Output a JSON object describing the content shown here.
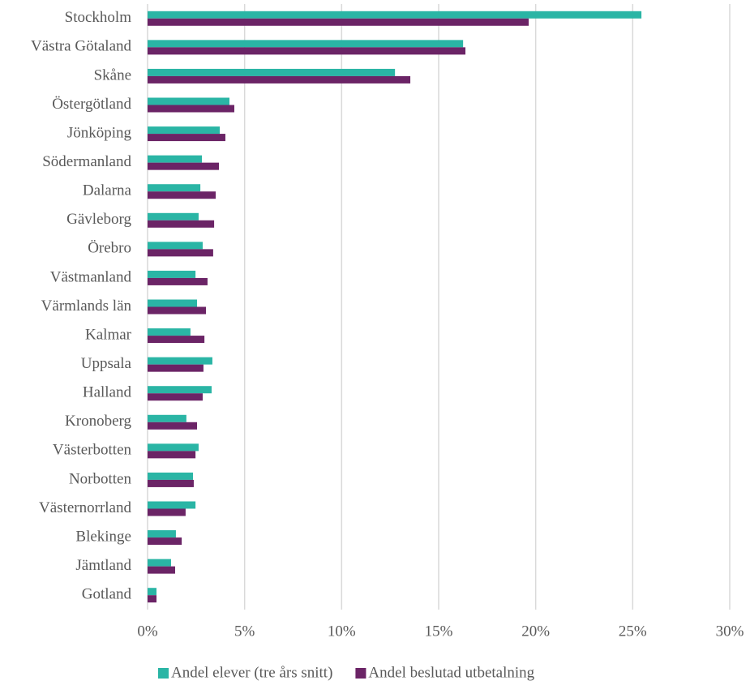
{
  "chart_data": {
    "type": "barh",
    "categories": [
      "Stockholm",
      "Västra Götaland",
      "Skåne",
      "Östergötland",
      "Jönköping",
      "Södermanland",
      "Dalarna",
      "Gävleborg",
      "Örebro",
      "Västmanland",
      "Värmlands län",
      "Kalmar",
      "Uppsala",
      "Halland",
      "Kronoberg",
      "Västerbotten",
      "Norbotten",
      "Västernorrland",
      "Blekinge",
      "Jämtland",
      "Gotland"
    ],
    "series": [
      {
        "name": "Andel elever (tre års snitt)",
        "color": "#2ab5a5",
        "values": [
          25.45,
          16.26,
          12.75,
          4.22,
          3.72,
          2.8,
          2.72,
          2.63,
          2.84,
          2.47,
          2.55,
          2.21,
          3.34,
          3.3,
          2.0,
          2.63,
          2.34,
          2.47,
          1.46,
          1.21,
          0.46
        ]
      },
      {
        "name": "Andel beslutad utbetalning",
        "color": "#6b2466",
        "values": [
          19.64,
          16.38,
          13.54,
          4.47,
          4.01,
          3.68,
          3.51,
          3.43,
          3.38,
          3.09,
          3.01,
          2.93,
          2.88,
          2.84,
          2.55,
          2.47,
          2.38,
          1.96,
          1.76,
          1.42,
          0.46
        ]
      }
    ],
    "xlim": [
      0,
      30
    ],
    "xticks": [
      {
        "value": 0,
        "label": "0%"
      },
      {
        "value": 5,
        "label": "5%"
      },
      {
        "value": 10,
        "label": "10%"
      },
      {
        "value": 15,
        "label": "15%"
      },
      {
        "value": 20,
        "label": "20%"
      },
      {
        "value": 25,
        "label": "25%"
      },
      {
        "value": 30,
        "label": "30%"
      }
    ],
    "grid": true,
    "legend": "bottom"
  }
}
